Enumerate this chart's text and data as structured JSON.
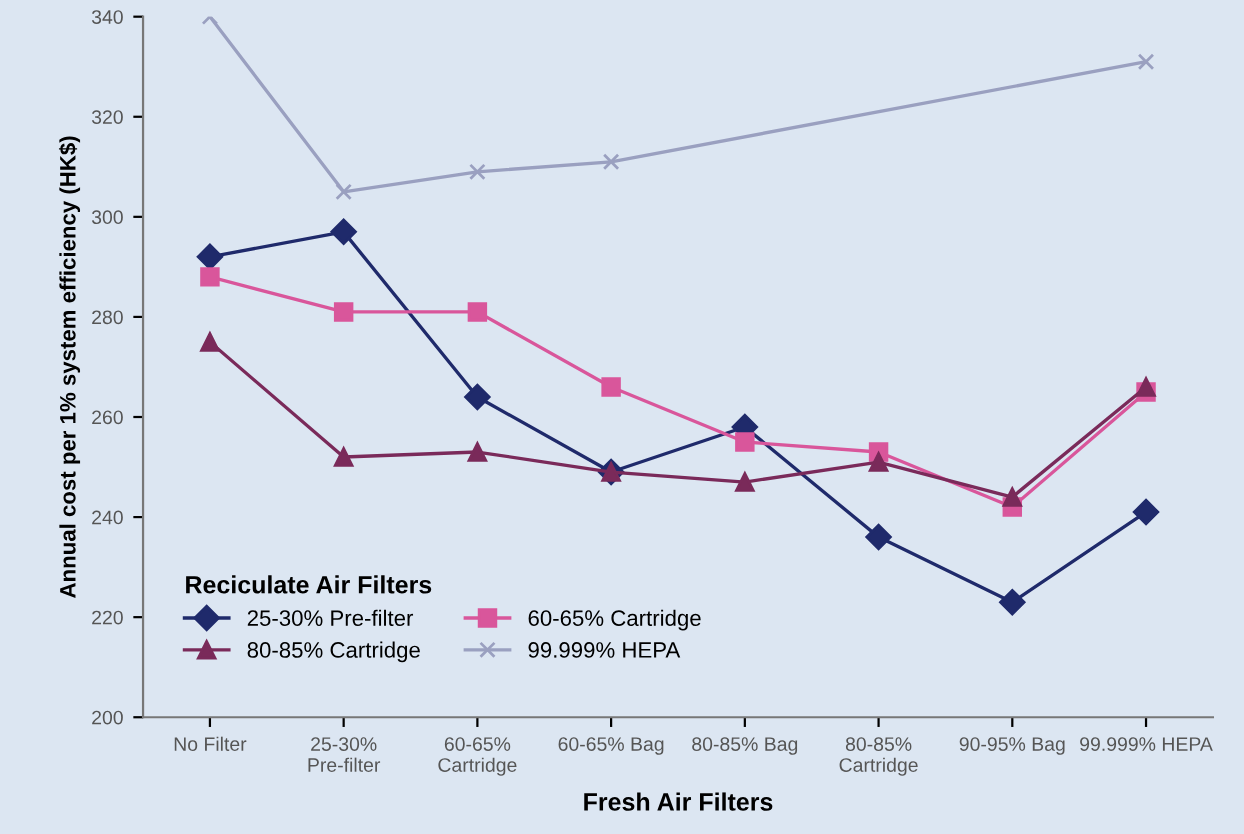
{
  "chart_data": {
    "type": "line",
    "xlabel": "Fresh Air Filters",
    "ylabel": "Annual cost per 1% system efficiency (HK$)",
    "legend_title": "Reciculate Air Filters",
    "legend": "bottom left",
    "grid": false,
    "categories": [
      "No Filter",
      "25-30% Pre-filter",
      "60-65% Cartridge",
      "60-65% Bag",
      "80-85% Bag",
      "80-85% Cartridge",
      "90-95% Bag",
      "99.999% HEPA"
    ],
    "ylim": [
      200,
      340
    ],
    "yticks": [
      200,
      220,
      240,
      260,
      280,
      300,
      320,
      340
    ],
    "series": [
      {
        "name": "25-30% Pre-filter",
        "color": "#1f2a6b",
        "marker": "diamond",
        "values": [
          292,
          297,
          264,
          249,
          258,
          236,
          223,
          241
        ]
      },
      {
        "name": "60-65% Cartridge",
        "color": "#d9569b",
        "marker": "square",
        "values": [
          288,
          281,
          281,
          266,
          255,
          253,
          242,
          265
        ]
      },
      {
        "name": "80-85% Cartridge",
        "color": "#7a2a5a",
        "marker": "triangle",
        "values": [
          275,
          252,
          253,
          249,
          247,
          251,
          244,
          266
        ]
      },
      {
        "name": "99.999% HEPA",
        "color": "#9aa0c0",
        "marker": "cross",
        "values": [
          340,
          305,
          309,
          311,
          null,
          null,
          null,
          331
        ]
      }
    ]
  }
}
